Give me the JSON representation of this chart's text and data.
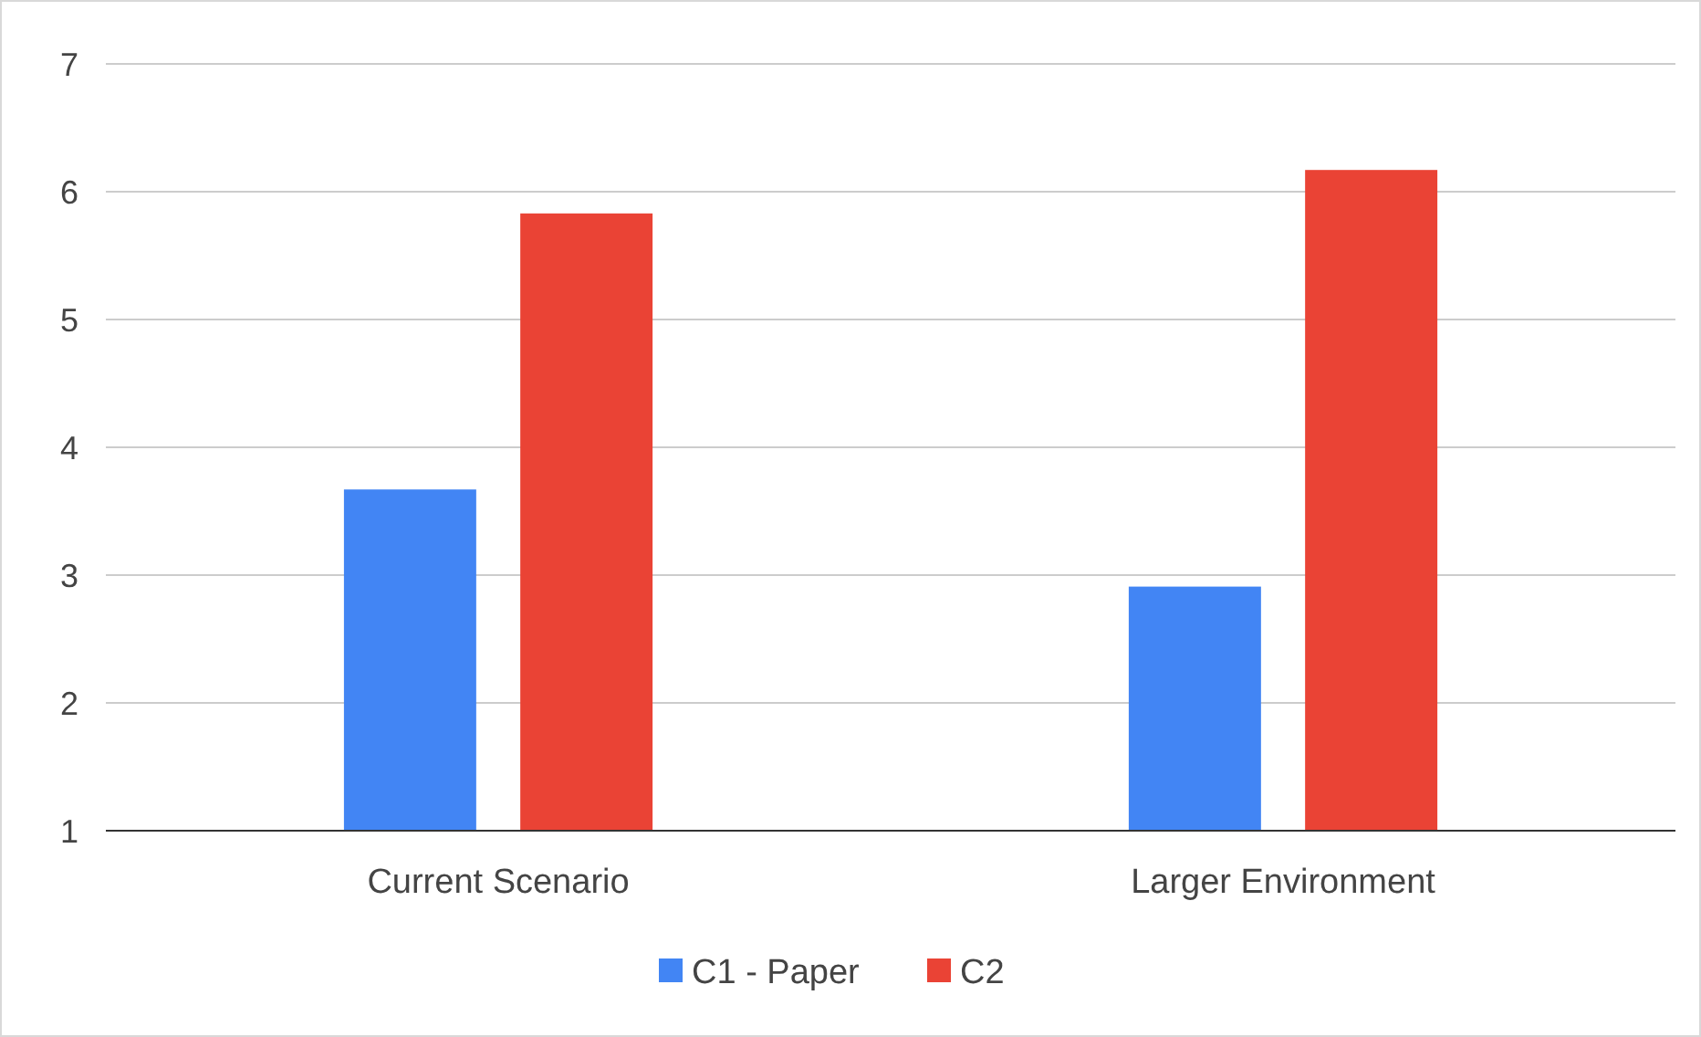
{
  "chart_data": {
    "type": "bar",
    "categories": [
      "Current Scenario",
      "Larger Environment"
    ],
    "series": [
      {
        "name": "C1 - Paper",
        "color": "#4285f4",
        "values": [
          3.67,
          2.91
        ]
      },
      {
        "name": "C2",
        "color": "#ea4335",
        "values": [
          5.83,
          6.17
        ]
      }
    ],
    "ylim": [
      1,
      7
    ],
    "yticks": [
      1,
      2,
      3,
      4,
      5,
      6,
      7
    ],
    "grid": "y",
    "legend": "bottom"
  }
}
